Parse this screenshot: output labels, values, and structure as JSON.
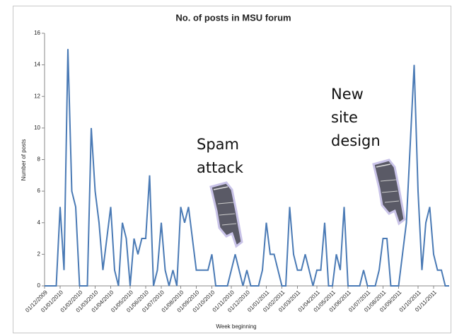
{
  "chart_data": {
    "type": "line",
    "title": "No. of posts in MSU forum",
    "x_label": "Week beginning",
    "y_label": "Number of posts",
    "categories": [
      "01/12/2009",
      null,
      null,
      null,
      "01/01/2010",
      null,
      null,
      null,
      null,
      "01/02/2010",
      null,
      null,
      null,
      "01/03/2010",
      null,
      null,
      null,
      "01/04/2010",
      null,
      null,
      null,
      null,
      "01/05/2010",
      null,
      null,
      null,
      "01/06/2010",
      null,
      null,
      null,
      "01/07/2010",
      null,
      null,
      null,
      null,
      "01/08/2010",
      null,
      null,
      null,
      "01/09/2010",
      null,
      null,
      null,
      "01/10/2010",
      null,
      null,
      null,
      null,
      "01/11/2010",
      null,
      null,
      null,
      "01/12/2010",
      null,
      null,
      null,
      null,
      "01/01/2011",
      null,
      null,
      null,
      "01/02/2011",
      null,
      null,
      null,
      "01/03/2011",
      null,
      null,
      null,
      null,
      "01/04/2011",
      null,
      null,
      null,
      "01/05/2011",
      null,
      null,
      null,
      "01/06/2011",
      null,
      null,
      null,
      null,
      "01/07/2011",
      null,
      null,
      null,
      "01/08/2011",
      null,
      null,
      null,
      "01/09/2011",
      null,
      null,
      null,
      null,
      "01/10/2011",
      null,
      null,
      null,
      "01/11/2011",
      null,
      null,
      null,
      null
    ],
    "values": [
      0,
      0,
      0,
      0,
      5,
      1,
      15,
      6,
      5,
      0,
      0,
      0,
      10,
      6,
      4,
      1,
      3,
      5,
      1,
      0,
      4,
      3,
      0,
      3,
      2,
      3,
      3,
      7,
      0,
      1,
      4,
      1,
      0,
      1,
      0,
      5,
      4,
      5,
      3,
      1,
      1,
      1,
      1,
      2,
      0,
      0,
      0,
      0,
      1,
      2,
      1,
      0,
      1,
      0,
      0,
      0,
      1,
      4,
      2,
      2,
      1,
      0,
      0,
      5,
      2,
      1,
      1,
      2,
      1,
      0,
      1,
      1,
      4,
      0,
      0,
      2,
      1,
      5,
      0,
      0,
      0,
      0,
      1,
      0,
      0,
      0,
      1,
      3,
      3,
      0,
      0,
      0,
      2,
      4,
      9,
      14,
      6,
      1,
      4,
      5,
      2,
      1,
      1,
      0,
      0
    ],
    "color": "#4a7ab5",
    "ylim": [
      0,
      16
    ],
    "yticks": [
      0,
      2,
      4,
      6,
      8,
      10,
      12,
      14,
      16
    ],
    "annotations": [
      [
        "Spam",
        "attack"
      ],
      [
        "New",
        "site",
        "design"
      ]
    ]
  }
}
